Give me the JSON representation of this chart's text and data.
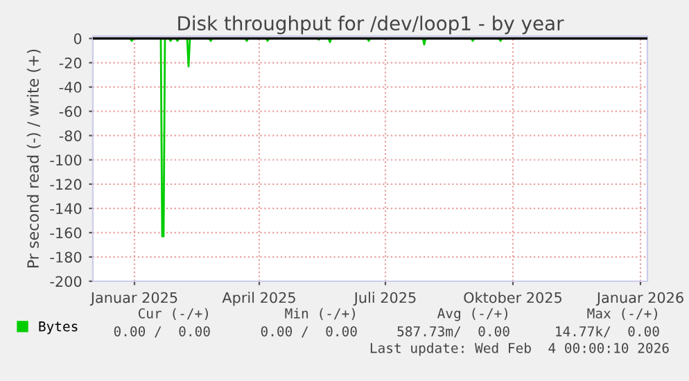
{
  "chart_data": {
    "type": "line",
    "title": "Disk throughput for /dev/loop1 - by year",
    "ylabel": "Pr second read (-) / write (+)",
    "xlim": [
      "2024-12-02",
      "2026-01-06"
    ],
    "xticks": [
      {
        "value": "2025-01-01",
        "label": "Januar 2025"
      },
      {
        "value": "2025-04-01",
        "label": "April 2025"
      },
      {
        "value": "2025-07-01",
        "label": "Juli 2025"
      },
      {
        "value": "2025-10-01",
        "label": "Oktober 2025"
      },
      {
        "value": "2026-01-01",
        "label": "Januar 2026"
      }
    ],
    "ylim": [
      -200,
      2
    ],
    "yticks": [
      0,
      -20,
      -40,
      -60,
      -80,
      -100,
      -120,
      -140,
      -160,
      -180,
      -200
    ],
    "grid": true,
    "legend": "bottom",
    "line_style": "solid",
    "marker": "none",
    "ref_lines": [
      {
        "axis": "y",
        "value": 0,
        "color": "#000000"
      }
    ],
    "series": [
      {
        "name": "Bytes",
        "color": "#00cc00",
        "x": [
          "2024-12-02",
          "2024-12-29",
          "2024-12-30",
          "2024-12-31",
          "2025-01-20",
          "2025-01-21",
          "2025-01-22",
          "2025-01-23",
          "2025-01-26",
          "2025-01-27",
          "2025-01-28",
          "2025-01-31",
          "2025-02-01",
          "2025-02-02",
          "2025-02-08",
          "2025-02-09",
          "2025-02-10",
          "2025-02-24",
          "2025-02-25",
          "2025-02-26",
          "2025-03-22",
          "2025-03-23",
          "2025-03-24",
          "2025-04-06",
          "2025-04-07",
          "2025-04-08",
          "2025-05-13",
          "2025-05-14",
          "2025-05-15",
          "2025-05-21",
          "2025-05-22",
          "2025-05-23",
          "2025-06-18",
          "2025-06-19",
          "2025-06-20",
          "2025-07-28",
          "2025-07-29",
          "2025-07-30",
          "2025-09-01",
          "2025-09-02",
          "2025-09-03",
          "2025-09-21",
          "2025-09-22",
          "2025-09-23",
          "2026-01-06"
        ],
        "values": [
          0,
          0,
          -2,
          0,
          0,
          -163,
          -163,
          0,
          0,
          -2,
          0,
          0,
          -2,
          0,
          0,
          -23,
          0,
          0,
          -2,
          0,
          0,
          -2,
          0,
          0,
          -2,
          0,
          0,
          -1,
          0,
          0,
          -3,
          0,
          0,
          -2,
          0,
          0,
          -5,
          0,
          0,
          -2,
          0,
          0,
          -2,
          0,
          0
        ]
      }
    ],
    "annotations": [
      "Cur (-/+)",
      "Min (-/+)",
      "Avg (-/+)",
      "Max (-/+)",
      "0.00 /  0.00",
      "0.00 /  0.00",
      "587.73m/  0.00",
      "14.77k/  0.00",
      "Last update: Wed Feb  4 00:00:10 2026"
    ]
  }
}
